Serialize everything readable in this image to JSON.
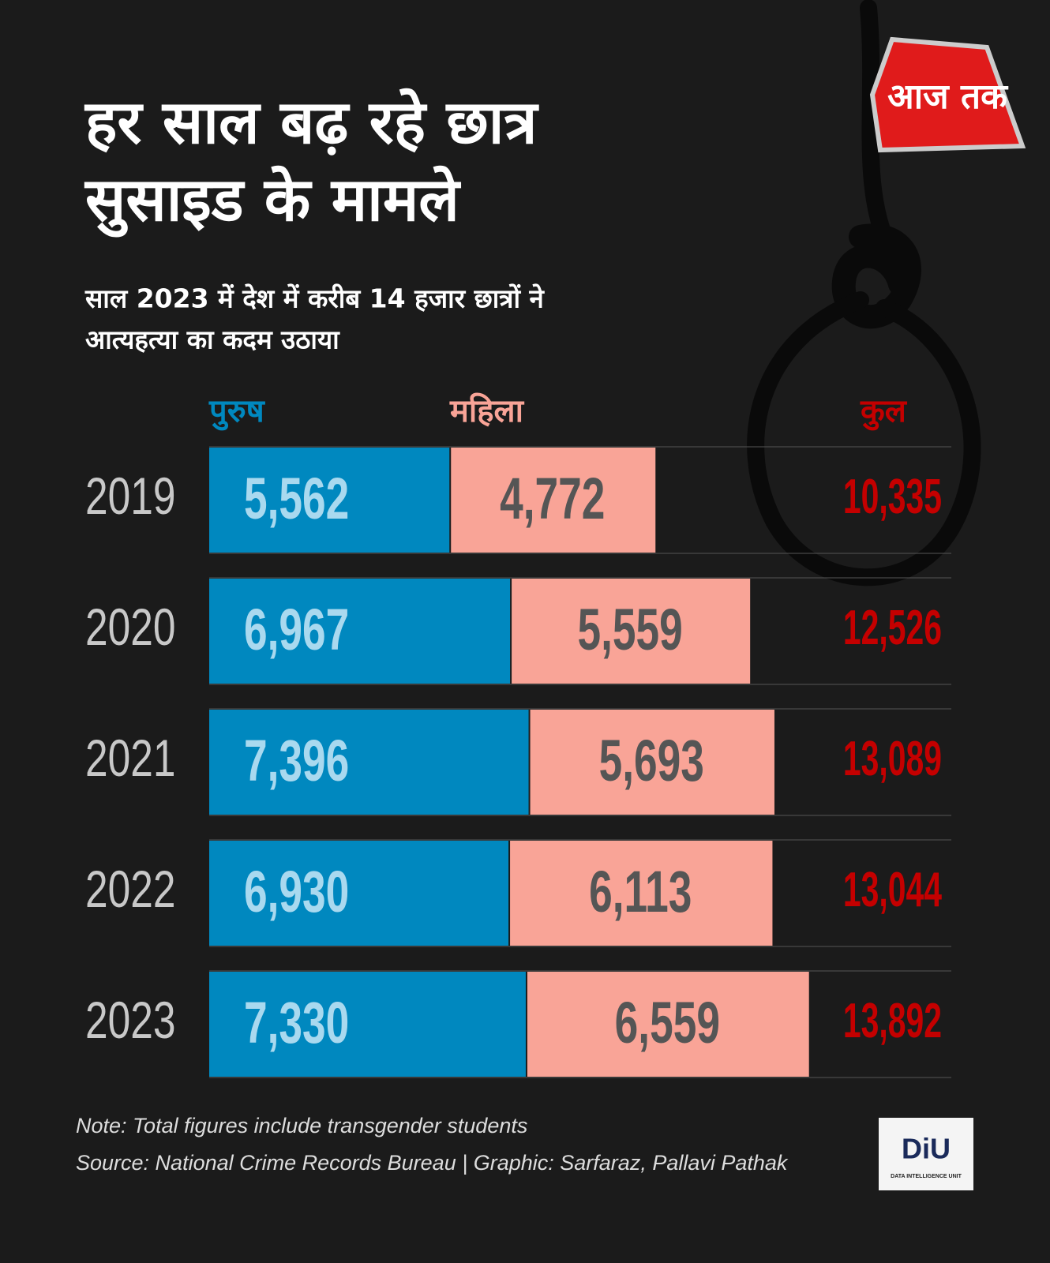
{
  "chart_data": {
    "type": "bar",
    "orientation": "horizontal",
    "stacked": true,
    "title": [
      "हर साल बढ़ रहे छात्र",
      "सुसाइड के मामले"
    ],
    "subtitle": [
      "साल 2023 में देश में करीब 14 हजार छात्रों ने",
      "आत्यहत्या का कदम उठाया"
    ],
    "categories": [
      "2019",
      "2020",
      "2021",
      "2022",
      "2023"
    ],
    "series": [
      {
        "name": "पुरुष",
        "color": "#0088bf",
        "label_color": "#a9d9ef",
        "values": [
          5562,
          6967,
          7396,
          6930,
          7330
        ],
        "value_labels": [
          "5,562",
          "6,967",
          "7,396",
          "6,930",
          "7,330"
        ]
      },
      {
        "name": "महिला",
        "color": "#f9a497",
        "label_color": "#555555",
        "values": [
          4772,
          5559,
          5693,
          6113,
          6559
        ],
        "value_labels": [
          "4,772",
          "5,559",
          "5,693",
          "6,113",
          "6,559"
        ]
      }
    ],
    "totals": {
      "name": "कुल",
      "color": "#c40000",
      "values": [
        10335,
        12526,
        13089,
        13044,
        13892
      ],
      "value_labels": [
        "10,335",
        "12,526",
        "13,089",
        "13,044",
        "13,892"
      ]
    },
    "note": "Note: Total figures include transgender students",
    "source": "Source: National Crime Records Bureau | Graphic:  Sarfaraz, Pallavi Pathak",
    "brand": "आज तक",
    "unit_logo": "DiU",
    "unit_name": "DATA INTELLIGENCE UNIT"
  }
}
